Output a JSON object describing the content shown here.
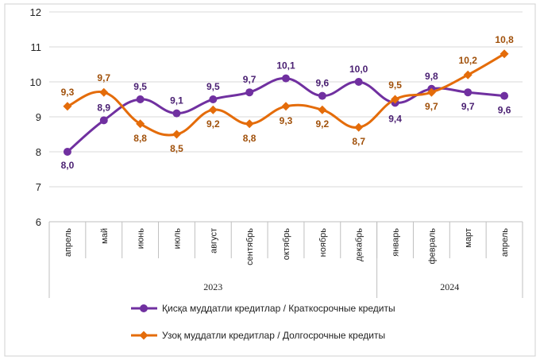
{
  "chart_data": {
    "type": "line",
    "categories": [
      "апрель",
      "май",
      "июнь",
      "июль",
      "август",
      "сентябрь",
      "октябрь",
      "ноябрь",
      "декабрь",
      "январь",
      "февраль",
      "март",
      "апрель"
    ],
    "year_groups": [
      {
        "label": "2023",
        "start": 0,
        "end": 8
      },
      {
        "label": "2024",
        "start": 9,
        "end": 12
      }
    ],
    "ylim": [
      6,
      12
    ],
    "yticks": [
      6,
      7,
      8,
      9,
      10,
      11,
      12
    ],
    "grid": true,
    "legend_position": "bottom",
    "series": [
      {
        "name": "Қисқа муддатли кредитлар  / Краткосрочные кредиты",
        "color": "#7030A0",
        "values": [
          8.0,
          8.9,
          9.5,
          9.1,
          9.5,
          9.7,
          10.1,
          9.6,
          10.0,
          9.4,
          9.8,
          9.7,
          9.6
        ],
        "labels": [
          "8,0",
          "8,9",
          "9,5",
          "9,1",
          "9,5",
          "9,7",
          "10,1",
          "9,6",
          "10,0",
          "9,4",
          "9,8",
          "9,7",
          "9,6"
        ]
      },
      {
        "name": "Узоқ муддатли кредитлар / Долгосрочные кредиты",
        "color": "#E46C0A",
        "values": [
          9.3,
          9.7,
          8.8,
          8.5,
          9.2,
          8.8,
          9.3,
          9.2,
          8.7,
          9.5,
          9.7,
          10.2,
          10.8
        ],
        "labels": [
          "9,3",
          "9,7",
          "8,8",
          "8,5",
          "9,2",
          "8,8",
          "9,3",
          "9,2",
          "8,7",
          "9,5",
          "9,7",
          "10,2",
          "10,8"
        ]
      }
    ]
  }
}
